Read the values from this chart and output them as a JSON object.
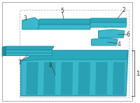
{
  "bg_color": "#ffffff",
  "part_color": "#3ab8cc",
  "part_color_dark": "#1a8a9e",
  "part_color_mid": "#2aa8bc",
  "line_color": "#444444",
  "text_color": "#333333",
  "label_fontsize": 5.5,
  "box_color": "#dddddd",
  "parts": {
    "labels": [
      "1",
      "2",
      "3",
      "4",
      "5",
      "6",
      "7",
      "8"
    ]
  }
}
